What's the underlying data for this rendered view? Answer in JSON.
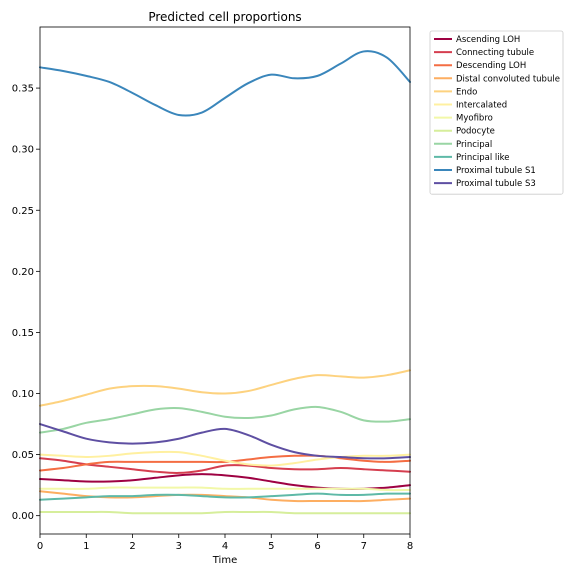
{
  "chart_data": {
    "type": "line",
    "title": "Predicted cell proportions",
    "xlabel": "Time",
    "ylabel": "",
    "xlim": [
      0,
      8
    ],
    "ylim": [
      -0.015,
      0.4
    ],
    "xticks": [
      0,
      1,
      2,
      3,
      4,
      5,
      6,
      7,
      8
    ],
    "yticks": [
      0.0,
      0.05,
      0.1,
      0.15,
      0.2,
      0.25,
      0.3,
      0.35
    ],
    "ytick_labels": [
      "0.00",
      "0.05",
      "0.10",
      "0.15",
      "0.20",
      "0.25",
      "0.30",
      "0.35"
    ],
    "grid": false,
    "legend_position": "outside-top-right",
    "x": [
      0,
      0.5,
      1,
      1.5,
      2,
      2.5,
      3,
      3.5,
      4,
      4.5,
      5,
      5.5,
      6,
      6.5,
      7,
      7.5,
      8
    ],
    "series": [
      {
        "name": "Ascending LOH",
        "color": "#9e0142",
        "values": [
          0.03,
          0.029,
          0.028,
          0.028,
          0.029,
          0.031,
          0.033,
          0.034,
          0.033,
          0.031,
          0.028,
          0.025,
          0.023,
          0.022,
          0.022,
          0.023,
          0.025
        ]
      },
      {
        "name": "Connecting tubule",
        "color": "#d53e4f",
        "values": [
          0.047,
          0.045,
          0.042,
          0.04,
          0.038,
          0.036,
          0.035,
          0.037,
          0.041,
          0.041,
          0.039,
          0.038,
          0.038,
          0.039,
          0.038,
          0.037,
          0.036
        ]
      },
      {
        "name": "Descending LOH",
        "color": "#f46d43",
        "values": [
          0.037,
          0.039,
          0.042,
          0.044,
          0.044,
          0.044,
          0.044,
          0.044,
          0.044,
          0.046,
          0.048,
          0.049,
          0.049,
          0.047,
          0.045,
          0.044,
          0.045
        ]
      },
      {
        "name": "Distal convoluted tubule",
        "color": "#fdae61",
        "values": [
          0.02,
          0.018,
          0.016,
          0.015,
          0.015,
          0.016,
          0.017,
          0.017,
          0.016,
          0.015,
          0.013,
          0.012,
          0.012,
          0.012,
          0.012,
          0.013,
          0.014
        ]
      },
      {
        "name": "Endo",
        "color": "#fdd27f",
        "values": [
          0.09,
          0.094,
          0.099,
          0.104,
          0.106,
          0.106,
          0.104,
          0.101,
          0.1,
          0.102,
          0.107,
          0.112,
          0.115,
          0.114,
          0.113,
          0.115,
          0.119
        ]
      },
      {
        "name": "Intercalated",
        "color": "#fff0a0",
        "values": [
          0.05,
          0.049,
          0.048,
          0.049,
          0.051,
          0.052,
          0.052,
          0.049,
          0.045,
          0.042,
          0.041,
          0.043,
          0.046,
          0.048,
          0.049,
          0.049,
          0.05
        ]
      },
      {
        "name": "Myofibro",
        "color": "#f2f8a8",
        "values": [
          0.022,
          0.022,
          0.022,
          0.023,
          0.023,
          0.023,
          0.023,
          0.023,
          0.022,
          0.022,
          0.022,
          0.022,
          0.022,
          0.022,
          0.022,
          0.021,
          0.021
        ]
      },
      {
        "name": "Podocyte",
        "color": "#d6ee9b",
        "values": [
          0.003,
          0.003,
          0.003,
          0.003,
          0.002,
          0.002,
          0.002,
          0.002,
          0.003,
          0.003,
          0.003,
          0.002,
          0.002,
          0.002,
          0.002,
          0.002,
          0.002
        ]
      },
      {
        "name": "Principal",
        "color": "#99d5a4",
        "values": [
          0.068,
          0.071,
          0.076,
          0.079,
          0.083,
          0.087,
          0.088,
          0.085,
          0.081,
          0.08,
          0.082,
          0.087,
          0.089,
          0.085,
          0.078,
          0.077,
          0.079
        ]
      },
      {
        "name": "Principal like",
        "color": "#5eb9a7",
        "values": [
          0.013,
          0.014,
          0.015,
          0.016,
          0.016,
          0.017,
          0.017,
          0.016,
          0.015,
          0.015,
          0.016,
          0.017,
          0.018,
          0.017,
          0.017,
          0.018,
          0.018
        ]
      },
      {
        "name": "Proximal tubule S1",
        "color": "#3a86bb",
        "values": [
          0.367,
          0.364,
          0.36,
          0.355,
          0.346,
          0.336,
          0.328,
          0.33,
          0.342,
          0.354,
          0.361,
          0.358,
          0.36,
          0.37,
          0.38,
          0.375,
          0.355
        ]
      },
      {
        "name": "Proximal tubule S3",
        "color": "#5e4fa2",
        "values": [
          0.075,
          0.069,
          0.063,
          0.06,
          0.059,
          0.06,
          0.063,
          0.068,
          0.071,
          0.066,
          0.058,
          0.052,
          0.049,
          0.048,
          0.047,
          0.047,
          0.048
        ]
      }
    ]
  }
}
